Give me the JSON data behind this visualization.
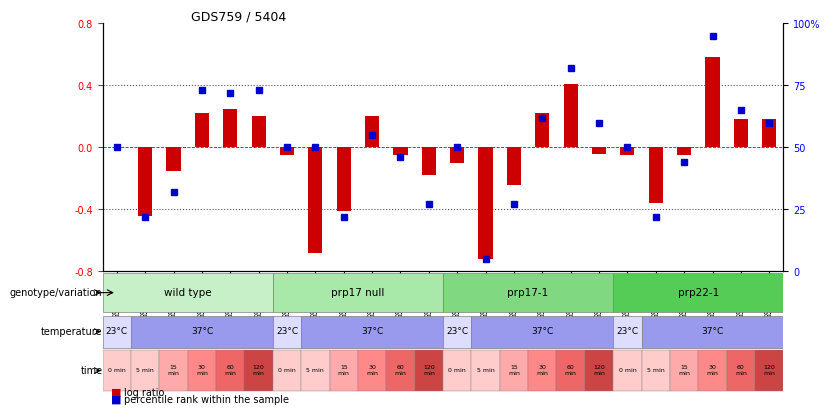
{
  "title": "GDS759 / 5404",
  "samples": [
    "GSM30876",
    "GSM30877",
    "GSM30878",
    "GSM30879",
    "GSM30880",
    "GSM30881",
    "GSM30882",
    "GSM30883",
    "GSM30884",
    "GSM30885",
    "GSM30886",
    "GSM30887",
    "GSM30888",
    "GSM30889",
    "GSM30890",
    "GSM30891",
    "GSM30892",
    "GSM30893",
    "GSM30894",
    "GSM30895",
    "GSM30896",
    "GSM30897",
    "GSM30898",
    "GSM30899"
  ],
  "log_ratio": [
    0.0,
    -0.44,
    -0.15,
    0.22,
    0.25,
    0.2,
    -0.05,
    -0.68,
    -0.41,
    0.2,
    -0.05,
    -0.18,
    -0.1,
    -0.72,
    -0.24,
    0.22,
    0.41,
    -0.04,
    -0.05,
    -0.36,
    -0.05,
    0.58,
    0.18,
    0.18
  ],
  "percentile": [
    50,
    22,
    32,
    73,
    72,
    73,
    50,
    50,
    22,
    55,
    46,
    27,
    50,
    5,
    27,
    62,
    82,
    60,
    50,
    22,
    44,
    95,
    65,
    60
  ],
  "ylim": [
    -0.8,
    0.8
  ],
  "yticks_left": [
    -0.8,
    -0.4,
    0.0,
    0.4,
    0.8
  ],
  "yticks_right": [
    0,
    25,
    50,
    75,
    100
  ],
  "bar_color": "#cc0000",
  "dot_color": "#0000cc",
  "zero_line_color": "#cc0000",
  "dotted_line_color": "#555555",
  "background_color": "#ffffff",
  "genotype_groups": [
    {
      "label": "wild type",
      "start": 0,
      "end": 5,
      "color": "#ccffcc"
    },
    {
      "label": "prp17 null",
      "start": 6,
      "end": 11,
      "color": "#99ee99"
    },
    {
      "label": "prp17-1",
      "start": 12,
      "end": 17,
      "color": "#66dd66"
    },
    {
      "label": "prp22-1",
      "start": 18,
      "end": 23,
      "color": "#33bb33"
    }
  ],
  "temperature_groups": [
    {
      "label": "23°C",
      "start": 0,
      "end": 0,
      "color": "#ddddff"
    },
    {
      "label": "37°C",
      "start": 1,
      "end": 5,
      "color": "#9999ee"
    },
    {
      "label": "23°C",
      "start": 6,
      "end": 6,
      "color": "#ddddff"
    },
    {
      "label": "37°C",
      "start": 7,
      "end": 11,
      "color": "#9999ee"
    },
    {
      "label": "23°C",
      "start": 12,
      "end": 12,
      "color": "#ddddff"
    },
    {
      "label": "37°C",
      "start": 13,
      "end": 17,
      "color": "#9999ee"
    },
    {
      "label": "23°C",
      "start": 18,
      "end": 18,
      "color": "#ddddff"
    },
    {
      "label": "37°C",
      "start": 19,
      "end": 23,
      "color": "#9999ee"
    }
  ],
  "time_labels": [
    "0 min",
    "5 min",
    "15\nmin",
    "30\nmin",
    "60\nmin",
    "120\nmin"
  ],
  "time_colors": [
    "#ffcccc",
    "#ffcccc",
    "#ffaaaa",
    "#ff8888",
    "#ee6666",
    "#cc4444"
  ],
  "row_labels": [
    "genotype/variation",
    "temperature",
    "time"
  ],
  "legend_bar": "log ratio",
  "legend_dot": "percentile rank within the sample"
}
